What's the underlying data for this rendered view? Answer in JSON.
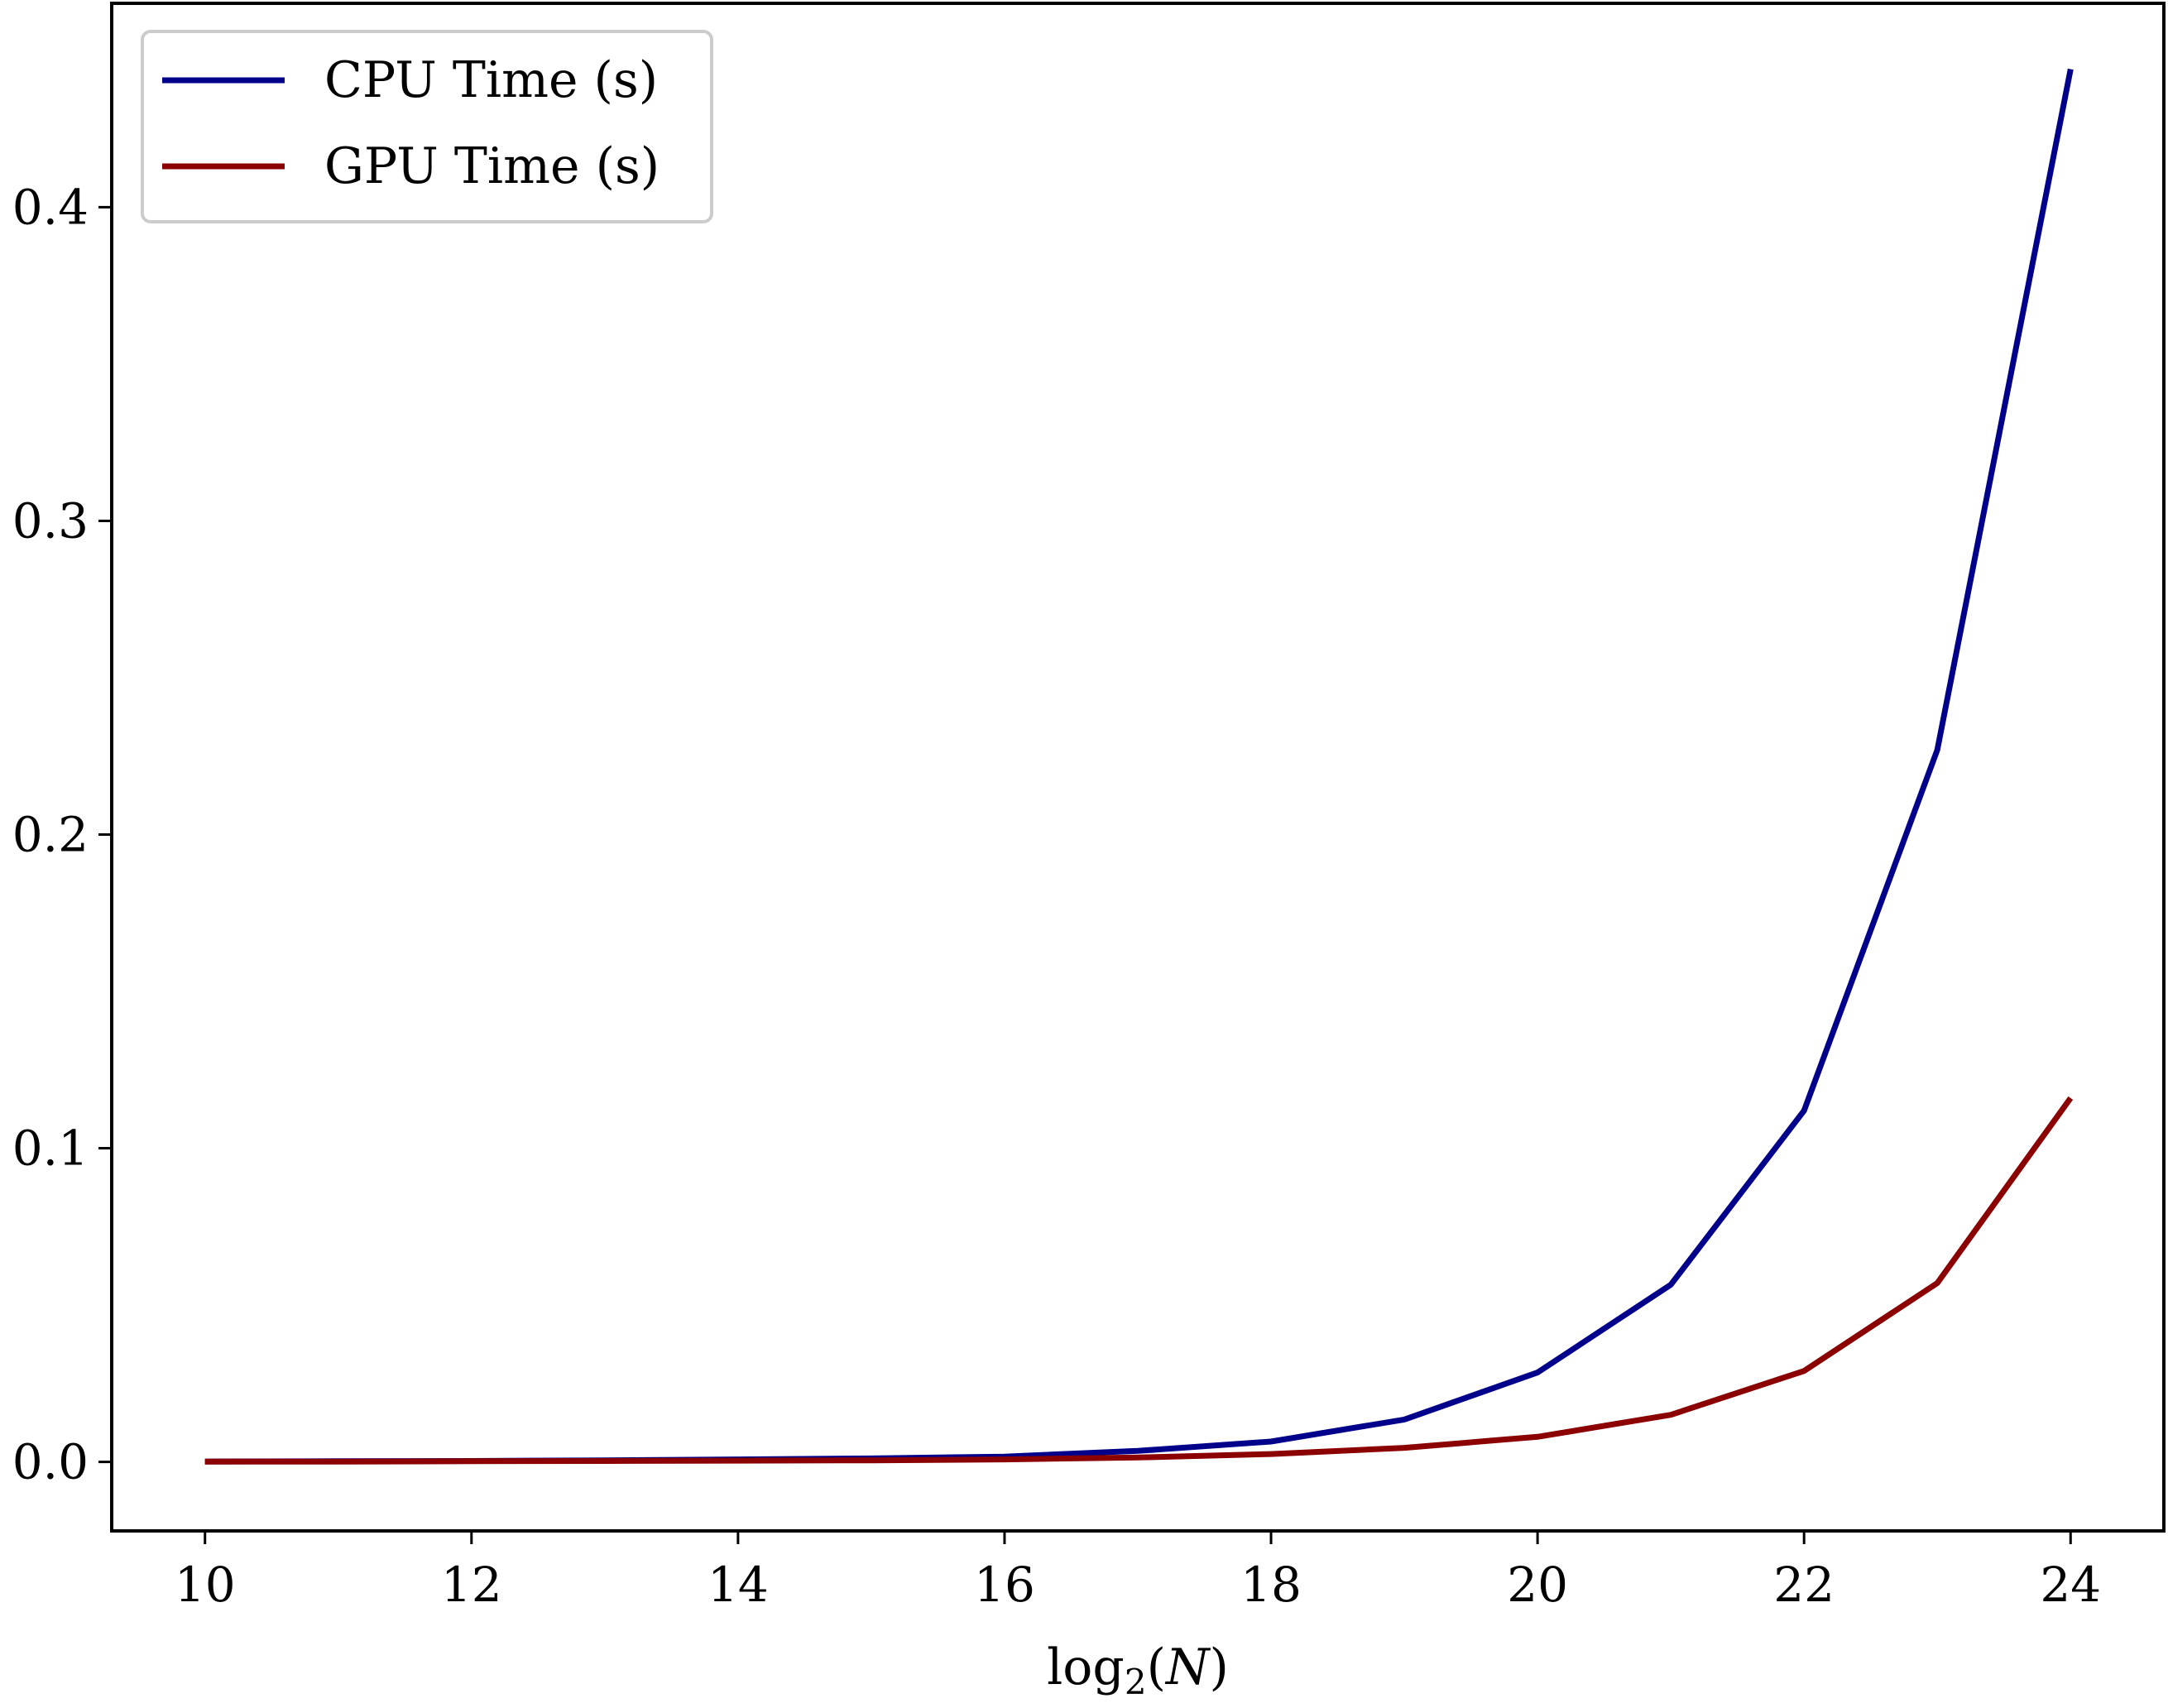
{
  "chart_data": {
    "type": "line",
    "title": "",
    "xlabel": "log",
    "xlabel_sub": "2",
    "xlabel_arg": "N",
    "ylabel": "",
    "x": [
      10,
      11,
      12,
      13,
      14,
      15,
      16,
      17,
      18,
      19,
      20,
      21,
      22,
      23,
      24
    ],
    "xticks": [
      "10",
      "12",
      "14",
      "16",
      "18",
      "20",
      "22",
      "24"
    ],
    "xtick_values": [
      10,
      12,
      14,
      16,
      18,
      20,
      22,
      24
    ],
    "yticks": [
      "0.0",
      "0.1",
      "0.2",
      "0.3",
      "0.4"
    ],
    "ytick_values": [
      0.0,
      0.1,
      0.2,
      0.3,
      0.4
    ],
    "xlim": [
      9.3,
      24.7
    ],
    "ylim": [
      -0.022,
      0.465
    ],
    "grid": false,
    "legend_position": "top-left",
    "series": [
      {
        "name": "CPU Time (s)",
        "color": "#00008b",
        "values": [
          0.0001,
          0.0002,
          0.0003,
          0.0005,
          0.0008,
          0.0011,
          0.0017,
          0.0035,
          0.0065,
          0.0135,
          0.0285,
          0.0565,
          0.112,
          0.227,
          0.444
        ]
      },
      {
        "name": "GPU Time (s)",
        "color": "#8b0000",
        "values": [
          0.0001,
          0.0001,
          0.0002,
          0.0003,
          0.0004,
          0.0005,
          0.0008,
          0.0014,
          0.0025,
          0.0045,
          0.008,
          0.015,
          0.029,
          0.057,
          0.116
        ]
      }
    ]
  }
}
